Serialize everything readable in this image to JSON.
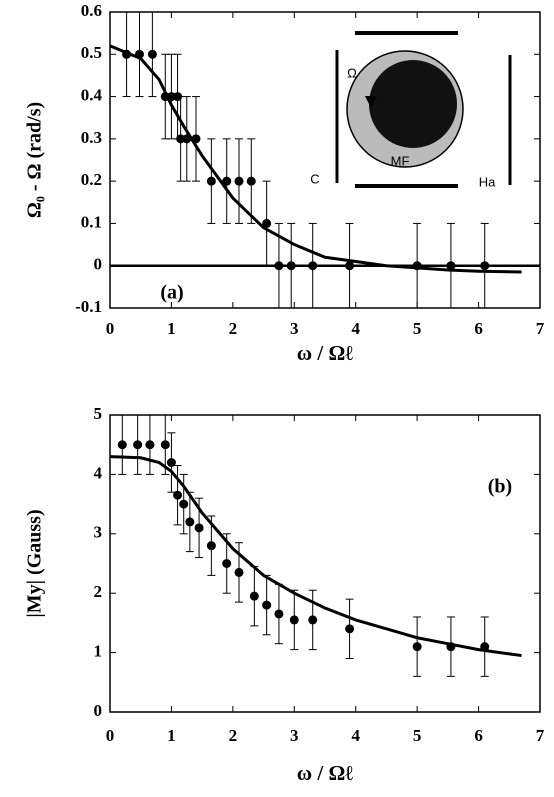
{
  "chart_data": [
    {
      "type": "scatter",
      "xlabel": "ω / Ωℓ",
      "ylabel": "Ω₀ - Ω  (rad/s)",
      "panel_label": "(a)",
      "annotations": [
        "Ω",
        "MF",
        "C",
        "Ha"
      ],
      "xlim": [
        0,
        7
      ],
      "xticks": [
        0,
        1,
        2,
        3,
        4,
        5,
        6,
        7
      ],
      "ylim": [
        -0.1,
        0.6
      ],
      "yticks": [
        -0.1,
        0,
        0.1,
        0.2,
        0.3,
        0.4,
        0.5,
        0.6
      ],
      "color": "#000000",
      "x": [
        0.27,
        0.48,
        0.69,
        0.9,
        1.0,
        1.1,
        1.15,
        1.25,
        1.4,
        1.65,
        1.9,
        2.1,
        2.3,
        2.55,
        2.75,
        2.95,
        3.3,
        3.9,
        5.0,
        5.55,
        6.1
      ],
      "values": [
        0.5,
        0.5,
        0.5,
        0.4,
        0.4,
        0.4,
        0.3,
        0.3,
        0.3,
        0.2,
        0.2,
        0.2,
        0.2,
        0.1,
        0,
        0,
        0,
        0,
        0,
        0,
        0
      ],
      "errors": [
        0.1,
        0.1,
        0.1,
        0.1,
        0.1,
        0.1,
        0.1,
        0.1,
        0.1,
        0.1,
        0.1,
        0.1,
        0.1,
        0.1,
        0.1,
        0.1,
        0.1,
        0.1,
        0.1,
        0.1,
        0.1
      ],
      "curve": {
        "x": [
          0,
          0.5,
          0.8,
          1,
          1.2,
          1.5,
          2,
          2.5,
          3,
          3.5,
          4,
          4.5,
          5,
          5.5,
          6,
          6.7
        ],
        "values": [
          0.52,
          0.49,
          0.44,
          0.38,
          0.33,
          0.26,
          0.16,
          0.09,
          0.05,
          0.02,
          0.01,
          0,
          -0.005,
          -0.01,
          -0.013,
          -0.015
        ]
      }
    },
    {
      "type": "scatter",
      "xlabel": "ω / Ωℓ",
      "ylabel": "|My|  (Gauss)",
      "panel_label": "(b)",
      "xlim": [
        0,
        7
      ],
      "xticks": [
        0,
        1,
        2,
        3,
        4,
        5,
        6,
        7
      ],
      "ylim": [
        0,
        5
      ],
      "yticks": [
        0,
        1,
        2,
        3,
        4,
        5
      ],
      "color": "#000000",
      "x": [
        0.2,
        0.45,
        0.65,
        0.9,
        1.0,
        1.1,
        1.2,
        1.3,
        1.45,
        1.65,
        1.9,
        2.1,
        2.35,
        2.55,
        2.75,
        3.0,
        3.3,
        3.9,
        5.0,
        5.55,
        6.1
      ],
      "values": [
        4.5,
        4.5,
        4.5,
        4.5,
        4.2,
        3.65,
        3.5,
        3.2,
        3.1,
        2.8,
        2.5,
        2.35,
        1.95,
        1.8,
        1.65,
        1.55,
        1.55,
        1.4,
        1.1,
        1.1,
        1.1
      ],
      "errors": [
        0.5,
        0.5,
        0.5,
        0.5,
        0.5,
        0.5,
        0.5,
        0.5,
        0.5,
        0.5,
        0.5,
        0.5,
        0.5,
        0.5,
        0.5,
        0.5,
        0.5,
        0.5,
        0.5,
        0.5,
        0.5
      ],
      "curve": {
        "x": [
          0,
          0.5,
          0.8,
          1,
          1.2,
          1.5,
          2,
          2.5,
          3,
          3.5,
          4,
          4.5,
          5,
          5.5,
          6,
          6.7
        ],
        "values": [
          4.3,
          4.28,
          4.2,
          4.05,
          3.8,
          3.35,
          2.75,
          2.3,
          2.0,
          1.75,
          1.55,
          1.4,
          1.25,
          1.15,
          1.05,
          0.95
        ]
      }
    }
  ]
}
